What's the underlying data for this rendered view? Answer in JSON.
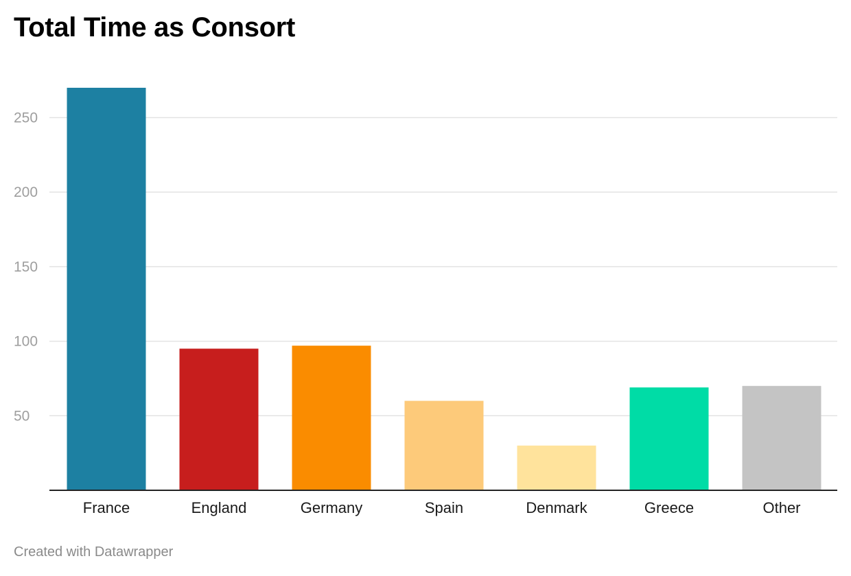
{
  "chart_data": {
    "type": "bar",
    "title": "Total Time as Consort",
    "xlabel": "",
    "ylabel": "",
    "categories": [
      "France",
      "England",
      "Germany",
      "Spain",
      "Denmark",
      "Greece",
      "Other"
    ],
    "values": [
      270,
      95,
      97,
      60,
      30,
      69,
      70
    ],
    "colors": [
      "#1d80a2",
      "#c71e1d",
      "#fa8c00",
      "#fdca7a",
      "#ffe39c",
      "#00dca6",
      "#c4c4c4"
    ],
    "ylim": [
      0,
      270
    ],
    "yticks": [
      50,
      100,
      150,
      200,
      250
    ],
    "grid": true,
    "legend": "none"
  },
  "footer": {
    "credit": "Created with Datawrapper"
  }
}
